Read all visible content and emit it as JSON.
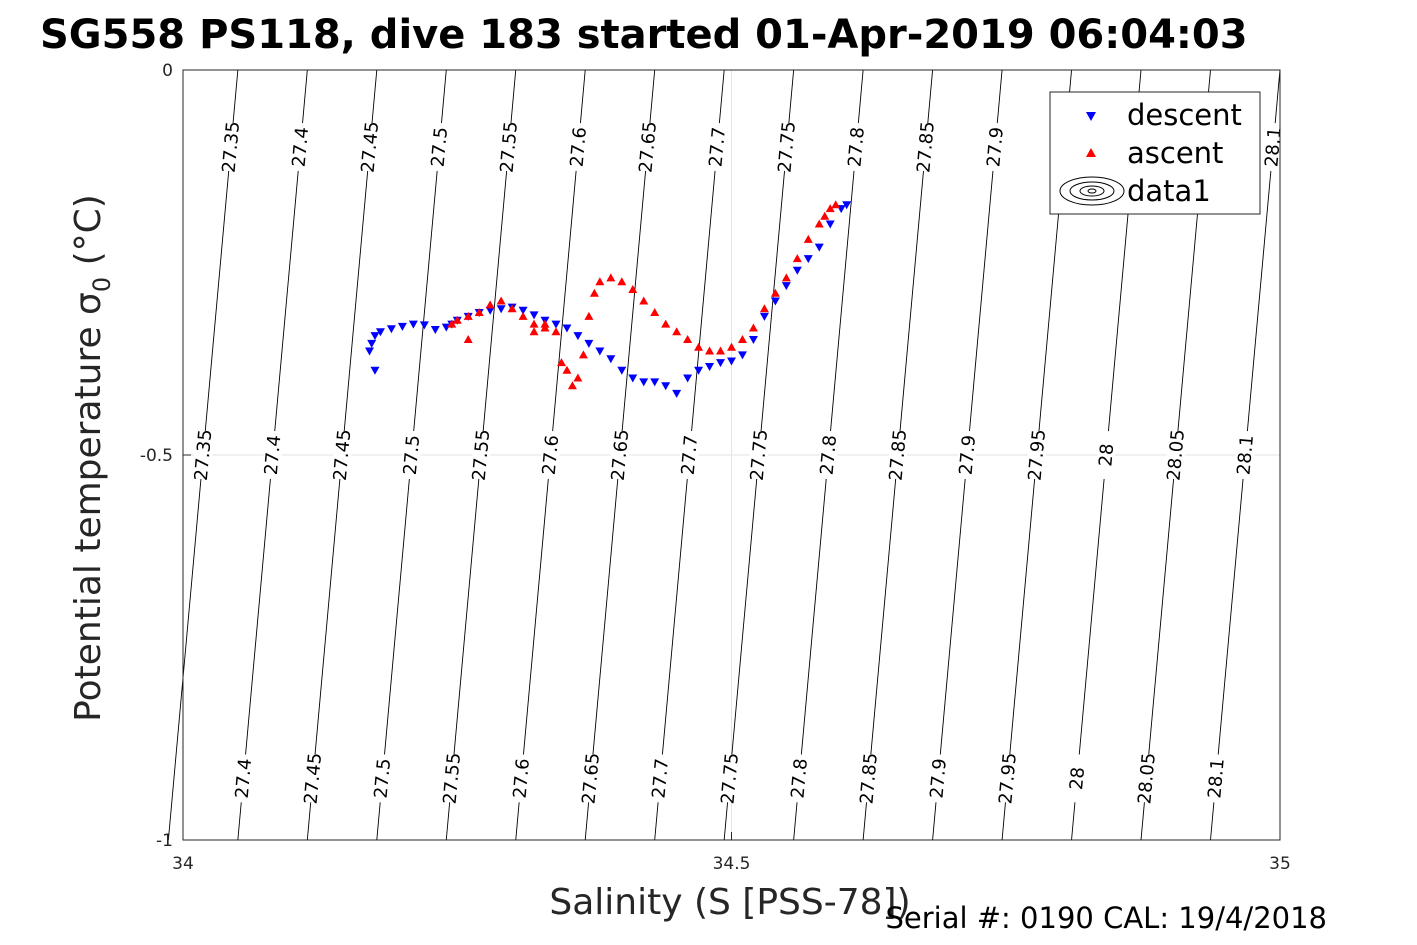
{
  "chart_data": {
    "type": "scatter",
    "title": "SG558 PS118, dive 183 started 01-Apr-2019 06:04:03",
    "xlabel": "Salinity (S [PSS-78])",
    "ylabel_main": "Potential temperature ",
    "ylabel_symbol": "σ",
    "ylabel_sub": "0",
    "ylabel_unit": " (°C)",
    "xlim": [
      34,
      35
    ],
    "ylim": [
      -1,
      0
    ],
    "x_ticks": [
      {
        "value": 34,
        "label": "34"
      },
      {
        "value": 34.5,
        "label": "34.5"
      },
      {
        "value": 35,
        "label": "35"
      }
    ],
    "y_ticks": [
      {
        "value": 0,
        "label": "0"
      },
      {
        "value": -0.5,
        "label": "-0.5"
      },
      {
        "value": -1,
        "label": "-1"
      }
    ],
    "grid": true,
    "legend_position": "top-right",
    "legend": [
      {
        "label": "descent",
        "marker": "triangle-down",
        "color": "#0000ff"
      },
      {
        "label": "ascent",
        "marker": "triangle-up",
        "color": "#ff0000"
      },
      {
        "label": "data1",
        "marker": "contour",
        "color": "#000000"
      }
    ],
    "density_contours": {
      "levels": [
        27.35,
        27.4,
        27.45,
        27.5,
        27.55,
        27.6,
        27.65,
        27.7,
        27.75,
        27.8,
        27.85,
        27.9,
        27.95,
        28,
        28.05,
        28.1
      ],
      "level_labels": [
        "27.35",
        "27.4",
        "27.45",
        "27.5",
        "27.55",
        "27.6",
        "27.65",
        "27.7",
        "27.75",
        "27.8",
        "27.85",
        "27.9",
        "27.95",
        "28",
        "28.05",
        "28.1"
      ],
      "label_rows_y": [
        -0.1,
        -0.5,
        -0.92
      ]
    },
    "series": [
      {
        "name": "descent",
        "color": "#0000ff",
        "marker": "triangle-down",
        "x": [
          34.17,
          34.172,
          34.175,
          34.18,
          34.19,
          34.2,
          34.21,
          34.22,
          34.23,
          34.24,
          34.245,
          34.25,
          34.26,
          34.27,
          34.28,
          34.29,
          34.3,
          34.31,
          34.32,
          34.33,
          34.34,
          34.35,
          34.36,
          34.37,
          34.38,
          34.39,
          34.4,
          34.41,
          34.42,
          34.43,
          34.44,
          34.45,
          34.46,
          34.47,
          34.48,
          34.49,
          34.5,
          34.51,
          34.52,
          34.53,
          34.54,
          34.55,
          34.56,
          34.57,
          34.58,
          34.59,
          34.6,
          34.605,
          34.175
        ],
        "y": [
          -0.365,
          -0.355,
          -0.345,
          -0.34,
          -0.336,
          -0.333,
          -0.33,
          -0.331,
          -0.337,
          -0.334,
          -0.33,
          -0.325,
          -0.32,
          -0.315,
          -0.312,
          -0.31,
          -0.308,
          -0.312,
          -0.318,
          -0.325,
          -0.33,
          -0.335,
          -0.345,
          -0.355,
          -0.365,
          -0.375,
          -0.39,
          -0.4,
          -0.405,
          -0.405,
          -0.41,
          -0.42,
          -0.4,
          -0.39,
          -0.385,
          -0.38,
          -0.378,
          -0.37,
          -0.35,
          -0.32,
          -0.3,
          -0.28,
          -0.26,
          -0.245,
          -0.23,
          -0.2,
          -0.18,
          -0.175,
          -0.39
        ]
      },
      {
        "name": "ascent",
        "color": "#ff0000",
        "marker": "triangle-up",
        "x": [
          34.245,
          34.25,
          34.26,
          34.27,
          34.28,
          34.29,
          34.3,
          34.31,
          34.32,
          34.33,
          34.34,
          34.345,
          34.35,
          34.355,
          34.36,
          34.365,
          34.37,
          34.375,
          34.38,
          34.39,
          34.4,
          34.41,
          34.42,
          34.43,
          34.44,
          34.45,
          34.46,
          34.47,
          34.48,
          34.49,
          34.5,
          34.51,
          34.52,
          34.53,
          34.54,
          34.55,
          34.56,
          34.57,
          34.58,
          34.585,
          34.59,
          34.595,
          34.26,
          34.32,
          34.33
        ],
        "y": [
          -0.33,
          -0.325,
          -0.32,
          -0.315,
          -0.305,
          -0.3,
          -0.31,
          -0.32,
          -0.33,
          -0.335,
          -0.34,
          -0.38,
          -0.39,
          -0.41,
          -0.4,
          -0.37,
          -0.32,
          -0.29,
          -0.275,
          -0.27,
          -0.275,
          -0.285,
          -0.3,
          -0.315,
          -0.33,
          -0.34,
          -0.35,
          -0.36,
          -0.365,
          -0.365,
          -0.36,
          -0.35,
          -0.335,
          -0.31,
          -0.29,
          -0.27,
          -0.245,
          -0.22,
          -0.2,
          -0.19,
          -0.18,
          -0.175,
          -0.35,
          -0.34,
          -0.33
        ]
      }
    ]
  },
  "footer": {
    "serial_text": "Serial #: 0190  CAL: 19/4/2018"
  }
}
